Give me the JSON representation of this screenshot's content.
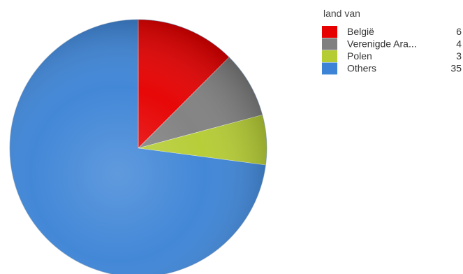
{
  "chart_data": {
    "type": "pie",
    "legend": {
      "title": "land van",
      "placement": "top-right"
    },
    "start_angle_deg": 0,
    "direction": "clockwise",
    "slices": [
      {
        "label": "België",
        "value": 6,
        "color": "#e60000"
      },
      {
        "label": "Verenigde Ara...",
        "value": 4,
        "color": "#808080"
      },
      {
        "label": "Polen",
        "value": 3,
        "color": "#b5cc33"
      },
      {
        "label": "Others",
        "value": 35,
        "color": "#3d84d6"
      }
    ]
  }
}
